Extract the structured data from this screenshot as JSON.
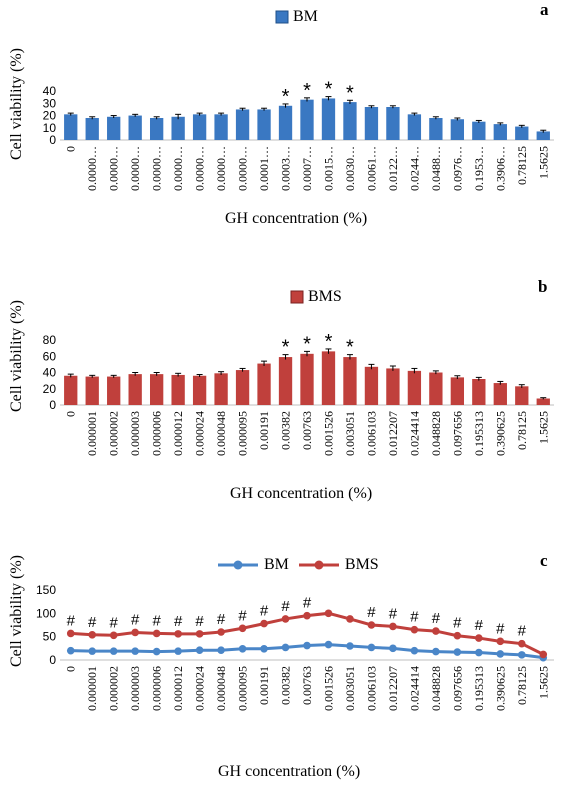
{
  "chart_data": [
    {
      "id": "a",
      "type": "bar",
      "panel_label": "a",
      "legend": [
        "BM"
      ],
      "ylabel": "Cell viability  (%)",
      "xlabel": "GH concentration  (%)",
      "yticks": [
        0,
        10,
        20,
        30,
        40
      ],
      "ylim": [
        0,
        45
      ],
      "categories": [
        "0",
        "0.0000…",
        "0.0000…",
        "0.0000…",
        "0.0000…",
        "0.0000…",
        "0.0000…",
        "0.0000…",
        "0.0000…",
        "0.0001…",
        "0.0003…",
        "0.0007…",
        "0.0015…",
        "0.0030…",
        "0.0061…",
        "0.0122…",
        "0.0244…",
        "0.0488…",
        "0.0976…",
        "0.1953…",
        "0.3906…",
        "0.78125",
        "1.5625"
      ],
      "series": [
        {
          "name": "BM",
          "color": "#3a78c2",
          "values": [
            21,
            18,
            19,
            20,
            18,
            19,
            21,
            21,
            25,
            25,
            28,
            33,
            34,
            31,
            27,
            27,
            21,
            18,
            17,
            15,
            13,
            11,
            7
          ],
          "errors": [
            1,
            1,
            1,
            1,
            1,
            2,
            1,
            1,
            1,
            1,
            1.5,
            1.5,
            1.5,
            1.5,
            1,
            1,
            1,
            1,
            1,
            1,
            1,
            1,
            1
          ]
        }
      ],
      "significance": [
        "",
        "",
        "",
        "",
        "",
        "",
        "",
        "",
        "",
        "",
        "*",
        "*",
        "*",
        "*",
        "",
        "",
        "",
        "",
        "",
        "",
        "",
        "",
        ""
      ]
    },
    {
      "id": "b",
      "type": "bar",
      "panel_label": "b",
      "legend": [
        "BMS"
      ],
      "ylabel": "Cell viability  (%)",
      "xlabel": "GH concentration  (%)",
      "yticks": [
        0,
        20,
        40,
        60,
        80
      ],
      "ylim": [
        0,
        80
      ],
      "categories": [
        "0",
        "0.000001",
        "0.000002",
        "0.000003",
        "0.000006",
        "0.000012",
        "0.000024",
        "0.000048",
        "0.000095",
        "0.00191",
        "0.00382",
        "0.00763",
        "0.001526",
        "0.003051",
        "0.006103",
        "0.012207",
        "0.024414",
        "0.048828",
        "0.097656",
        "0.195313",
        "0.390625",
        "0.78125",
        "1.5625"
      ],
      "series": [
        {
          "name": "BMS",
          "color": "#c0403c",
          "values": [
            36,
            35,
            35,
            38,
            38,
            37,
            36,
            39,
            43,
            51,
            59,
            63,
            66,
            59,
            47,
            45,
            42,
            40,
            34,
            32,
            27,
            23,
            8
          ],
          "errors": [
            2,
            1.5,
            1.5,
            2,
            2,
            2,
            1.5,
            2,
            2,
            3,
            3,
            3,
            3,
            3,
            3,
            3,
            3,
            2,
            2,
            2,
            2,
            2,
            1
          ]
        }
      ],
      "significance": [
        "",
        "",
        "",
        "",
        "",
        "",
        "",
        "",
        "",
        "",
        "*",
        "*",
        "*",
        "*",
        "",
        "",
        "",
        "",
        "",
        "",
        "",
        "",
        ""
      ]
    },
    {
      "id": "c",
      "type": "line",
      "panel_label": "c",
      "legend": [
        "BM",
        "BMS"
      ],
      "ylabel": "Cell viability  (%)",
      "xlabel": "GH concentration  (%)",
      "yticks": [
        0,
        50,
        100,
        150
      ],
      "ylim": [
        0,
        150
      ],
      "categories": [
        "0",
        "0.000001",
        "0.000002",
        "0.000003",
        "0.000006",
        "0.000012",
        "0.000024",
        "0.000048",
        "0.000095",
        "0.00191",
        "0.00382",
        "0.00763",
        "0.001526",
        "0.003051",
        "0.006103",
        "0.012207",
        "0.024414",
        "0.048828",
        "0.097656",
        "0.195313",
        "0.390625",
        "0.78125",
        "1.5625"
      ],
      "series": [
        {
          "name": "BM",
          "color": "#4a86c8",
          "values": [
            20,
            19,
            19,
            19,
            18,
            19,
            21,
            21,
            24,
            24,
            27,
            31,
            33,
            30,
            27,
            25,
            20,
            18,
            17,
            16,
            13,
            11,
            5
          ]
        },
        {
          "name": "BMS",
          "color": "#c0403c",
          "values": [
            57,
            54,
            53,
            59,
            57,
            56,
            56,
            60,
            68,
            78,
            88,
            95,
            100,
            88,
            75,
            72,
            65,
            62,
            52,
            47,
            40,
            35,
            12
          ]
        }
      ],
      "significance": [
        "#",
        "#",
        "#",
        "#",
        "#",
        "#",
        "#",
        "#",
        "#",
        "#",
        "#",
        "#",
        "",
        "",
        "#",
        "#",
        "#",
        "#",
        "#",
        "#",
        "#",
        "#",
        ""
      ]
    }
  ]
}
